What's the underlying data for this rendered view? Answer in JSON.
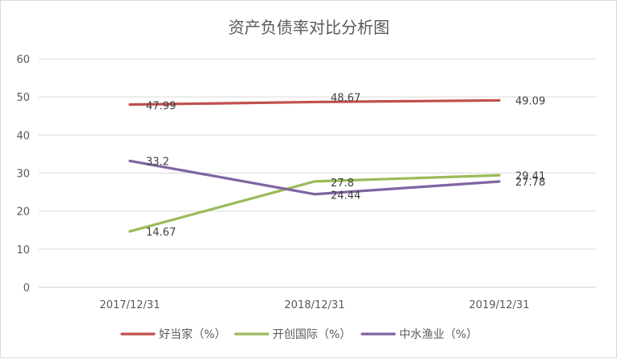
{
  "chart_data": {
    "type": "line",
    "title": "资产负债率对比分析图",
    "categories": [
      "2017/12/31",
      "2018/12/31",
      "2019/12/31"
    ],
    "ylim": [
      0,
      60
    ],
    "yticks": [
      0,
      10,
      20,
      30,
      40,
      50,
      60
    ],
    "grid": true,
    "legend_position": "bottom",
    "series": [
      {
        "name": "好当家（%）",
        "values": [
          47.99,
          48.67,
          49.09
        ],
        "labels": [
          "47.99",
          "48.67",
          "49.09"
        ],
        "color": "#c0504d"
      },
      {
        "name": "开创国际（%）",
        "values": [
          14.67,
          27.8,
          29.41
        ],
        "labels": [
          "14.67",
          "27.8",
          "29.41"
        ],
        "color": "#9bbb59"
      },
      {
        "name": "中水渔业（%）",
        "values": [
          33.2,
          24.44,
          27.78
        ],
        "labels": [
          "33.2",
          "24.44",
          "27.78"
        ],
        "color": "#8064a2"
      }
    ]
  }
}
